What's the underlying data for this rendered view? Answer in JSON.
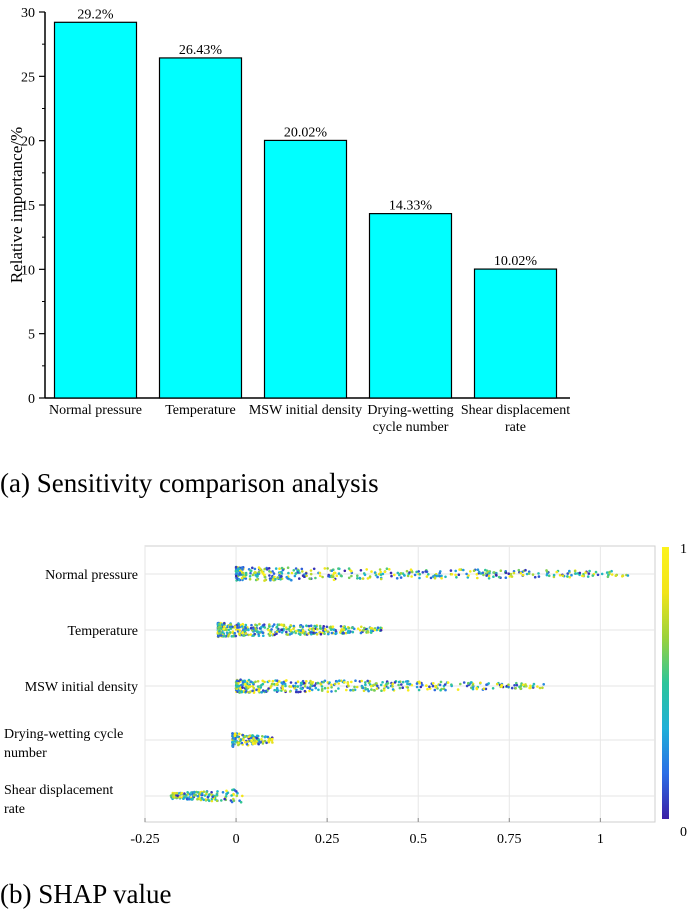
{
  "captions": {
    "a": "(a)  Sensitivity comparison analysis",
    "b": "(b) SHAP value"
  },
  "chart_data": [
    {
      "type": "bar",
      "categories": [
        "Normal pressure",
        "Temperature",
        "MSW initial density",
        "Drying-wetting cycle number",
        "Shear displacement rate"
      ],
      "category_lines": [
        [
          "Normal pressure"
        ],
        [
          "Temperature"
        ],
        [
          "MSW initial density"
        ],
        [
          "Drying-wetting",
          "cycle number"
        ],
        [
          "Shear displacement",
          "rate"
        ]
      ],
      "values": [
        29.2,
        26.43,
        20.02,
        14.33,
        10.02
      ],
      "data_labels": [
        "29.2%",
        "26.43%",
        "20.02%",
        "14.33%",
        "10.02%"
      ],
      "ylabel": "Relative importance/%",
      "ylim": [
        0,
        30
      ],
      "yticks": [
        0,
        5,
        10,
        15,
        20,
        25,
        30
      ],
      "bar_color": "#00ffff",
      "edge_color": "#000000"
    },
    {
      "type": "scatter",
      "categories": [
        "Normal pressure",
        "Temperature",
        "MSW initial density",
        "Drying-wetting cycle number",
        "Shear displacement rate"
      ],
      "category_lines": [
        [
          "Normal pressure"
        ],
        [
          "Temperature"
        ],
        [
          "MSW initial density"
        ],
        [
          "Drying-wetting cycle",
          "number"
        ],
        [
          "Shear displacement",
          "rate"
        ]
      ],
      "xlim": [
        -0.25,
        1.15
      ],
      "xticks": [
        -0.25,
        0,
        0.25,
        0.5,
        0.75,
        1
      ],
      "xtick_labels": [
        "-0.25",
        "0",
        "0.25",
        "0.5",
        "0.75",
        "1"
      ],
      "shap_ranges": [
        [
          0.0,
          1.08
        ],
        [
          -0.05,
          0.4
        ],
        [
          0.0,
          0.85
        ],
        [
          -0.01,
          0.1
        ],
        [
          -0.18,
          0.02
        ]
      ],
      "colorbar": {
        "min_label": "0",
        "max_label": "1",
        "colors": [
          "#3b1fa6",
          "#2b6ee6",
          "#1fb0d8",
          "#2cc59a",
          "#9bd23c",
          "#f2e41a",
          "#fcf31c"
        ]
      },
      "grid": true
    }
  ]
}
